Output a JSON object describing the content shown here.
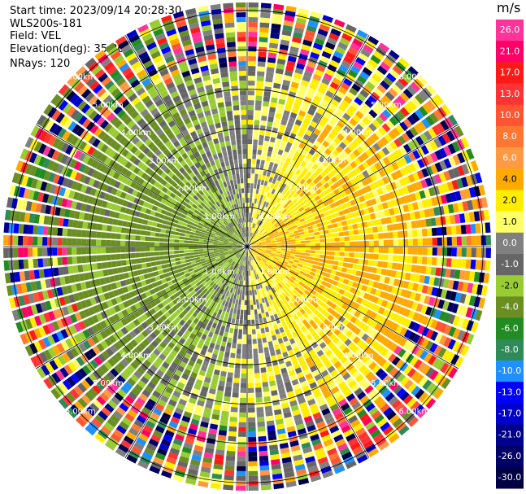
{
  "info": {
    "start_time": "Start time: 2023/09/14 20:28:30",
    "instrument": "WLS200s-181",
    "field": "Field: VEL",
    "elevation": "Elevation(deg): 35.30",
    "nrays": "NRays: 120"
  },
  "chart_data": {
    "type": "ppi",
    "field": "VEL",
    "elevation_deg": 35.3,
    "n_rays": 120,
    "range_rings": [
      "1.00km",
      "2.00km",
      "3.00km",
      "4.00km",
      "5.00km",
      "6.00km"
    ],
    "range_ring_values_km": [
      1,
      2,
      3,
      4,
      5,
      6
    ],
    "colorbar": {
      "unit": "m/s",
      "tick_labels": [
        "26.0",
        "21.0",
        "17.0",
        "13.0",
        "10.0",
        "8.0",
        "6.0",
        "4.0",
        "2.0",
        "1.0",
        "0.0",
        "-1.0",
        "-2.0",
        "-4.0",
        "-6.0",
        "-8.0",
        "-10.0",
        "-13.0",
        "-17.0",
        "-21.0",
        "-26.0",
        "-30.0"
      ],
      "colors": [
        "#ff3399",
        "#ff0066",
        "#ff1a1a",
        "#ff3333",
        "#ff5533",
        "#ff7733",
        "#ff9944",
        "#ffaa00",
        "#ffee00",
        "#ffff66",
        "#808080",
        "#666666",
        "#99cc33",
        "#6b8e23",
        "#228b22",
        "#2e8b57",
        "#1e90ff",
        "#0000ff",
        "#0000cc",
        "#00008b",
        "#000066",
        "#000044"
      ]
    }
  }
}
